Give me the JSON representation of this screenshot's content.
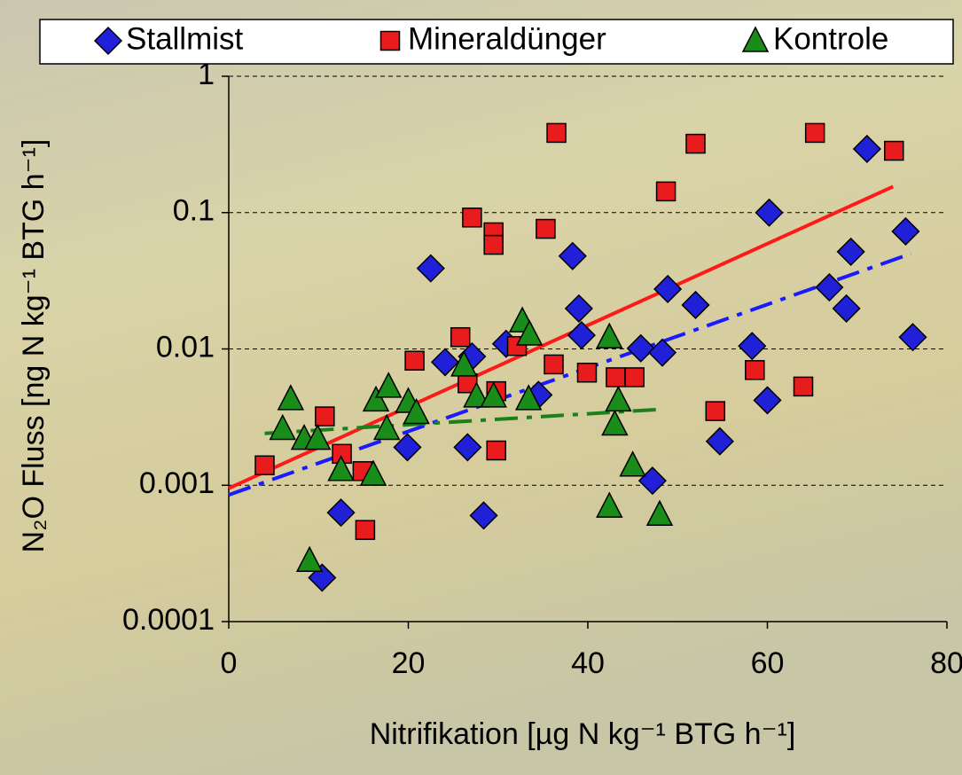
{
  "chart_data": {
    "type": "scatter",
    "xlabel": "Nitrifikation [µg N kg⁻¹ BTG h⁻¹]",
    "ylabel": "N₂O Fluss [ng N kg⁻¹ BTG h⁻¹]",
    "xlim": [
      0,
      80
    ],
    "xticks": [
      0,
      20,
      40,
      60,
      80
    ],
    "ylim": [
      0.0001,
      1
    ],
    "yticks": [
      0.0001,
      0.001,
      0.01,
      0.1,
      1
    ],
    "log_y": true,
    "grid": true,
    "legend": "top",
    "series": [
      {
        "name": "Stallmist",
        "color": "#2020d8",
        "marker": "diamond",
        "x": [
          10.4,
          12.5,
          19.9,
          22.5,
          24.1,
          26.6,
          27.1,
          28.4,
          30.9,
          34.5,
          38.3,
          39.0,
          39.3,
          45.9,
          47.2,
          48.3,
          48.9,
          52.0,
          54.7,
          58.3,
          60.0,
          60.2,
          66.9,
          68.8,
          69.3,
          71.1,
          75.4,
          76.2
        ],
        "values": [
          0.00021,
          0.00063,
          0.0019,
          0.039,
          0.008,
          0.0019,
          0.0088,
          0.0006,
          0.0109,
          0.0046,
          0.048,
          0.0198,
          0.0126,
          0.0101,
          0.00108,
          0.0094,
          0.0275,
          0.021,
          0.0021,
          0.0105,
          0.0042,
          0.1,
          0.0283,
          0.0198,
          0.0516,
          0.293,
          0.0728,
          0.0122
        ],
        "trend": {
          "x": [
            0,
            76
          ],
          "values": [
            0.00085,
            0.05
          ],
          "color": "#1a1aff",
          "dash": true
        }
      },
      {
        "name": "Mineraldünger",
        "color": "#e81c1c",
        "marker": "square",
        "x": [
          4.0,
          10.7,
          12.6,
          15.2,
          14.9,
          20.7,
          25.8,
          26.6,
          27.1,
          29.8,
          29.5,
          29.5,
          29.8,
          32.1,
          36.5,
          35.3,
          36.2,
          39.9,
          43.1,
          45.2,
          48.7,
          52.0,
          54.2,
          58.6,
          64.0,
          65.3,
          74.1
        ],
        "values": [
          0.0014,
          0.0032,
          0.0017,
          0.00047,
          0.00127,
          0.0082,
          0.0122,
          0.0056,
          0.092,
          0.0049,
          0.0717,
          0.058,
          0.0018,
          0.0105,
          0.384,
          0.076,
          0.0077,
          0.0067,
          0.0062,
          0.0062,
          0.143,
          0.32,
          0.0035,
          0.007,
          0.0053,
          0.384,
          0.284
        ],
        "trend": {
          "x": [
            0,
            74
          ],
          "values": [
            0.00095,
            0.155
          ],
          "color": "#ff1a1a",
          "dash": false
        }
      },
      {
        "name": "Kontrole",
        "color": "#1a8c1a",
        "marker": "triangle",
        "x": [
          6.9,
          6.0,
          8.4,
          9.0,
          9.9,
          12.5,
          16.1,
          16.4,
          17.8,
          17.6,
          20.0,
          20.9,
          26.2,
          27.6,
          29.5,
          32.7,
          33.4,
          33.5,
          42.4,
          43.4,
          43.0,
          42.4,
          45.0,
          48.0
        ],
        "values": [
          0.0043,
          0.0026,
          0.0022,
          0.00028,
          0.0022,
          0.0013,
          0.0012,
          0.0042,
          0.0053,
          0.0026,
          0.0041,
          0.0034,
          0.0076,
          0.0045,
          0.0045,
          0.016,
          0.0043,
          0.0128,
          0.0122,
          0.0042,
          0.0028,
          0.0007,
          0.0014,
          0.00061
        ],
        "trend": {
          "x": [
            4,
            48
          ],
          "values": [
            0.0024,
            0.0036
          ],
          "color": "#1a801a",
          "dash": true
        }
      }
    ]
  }
}
